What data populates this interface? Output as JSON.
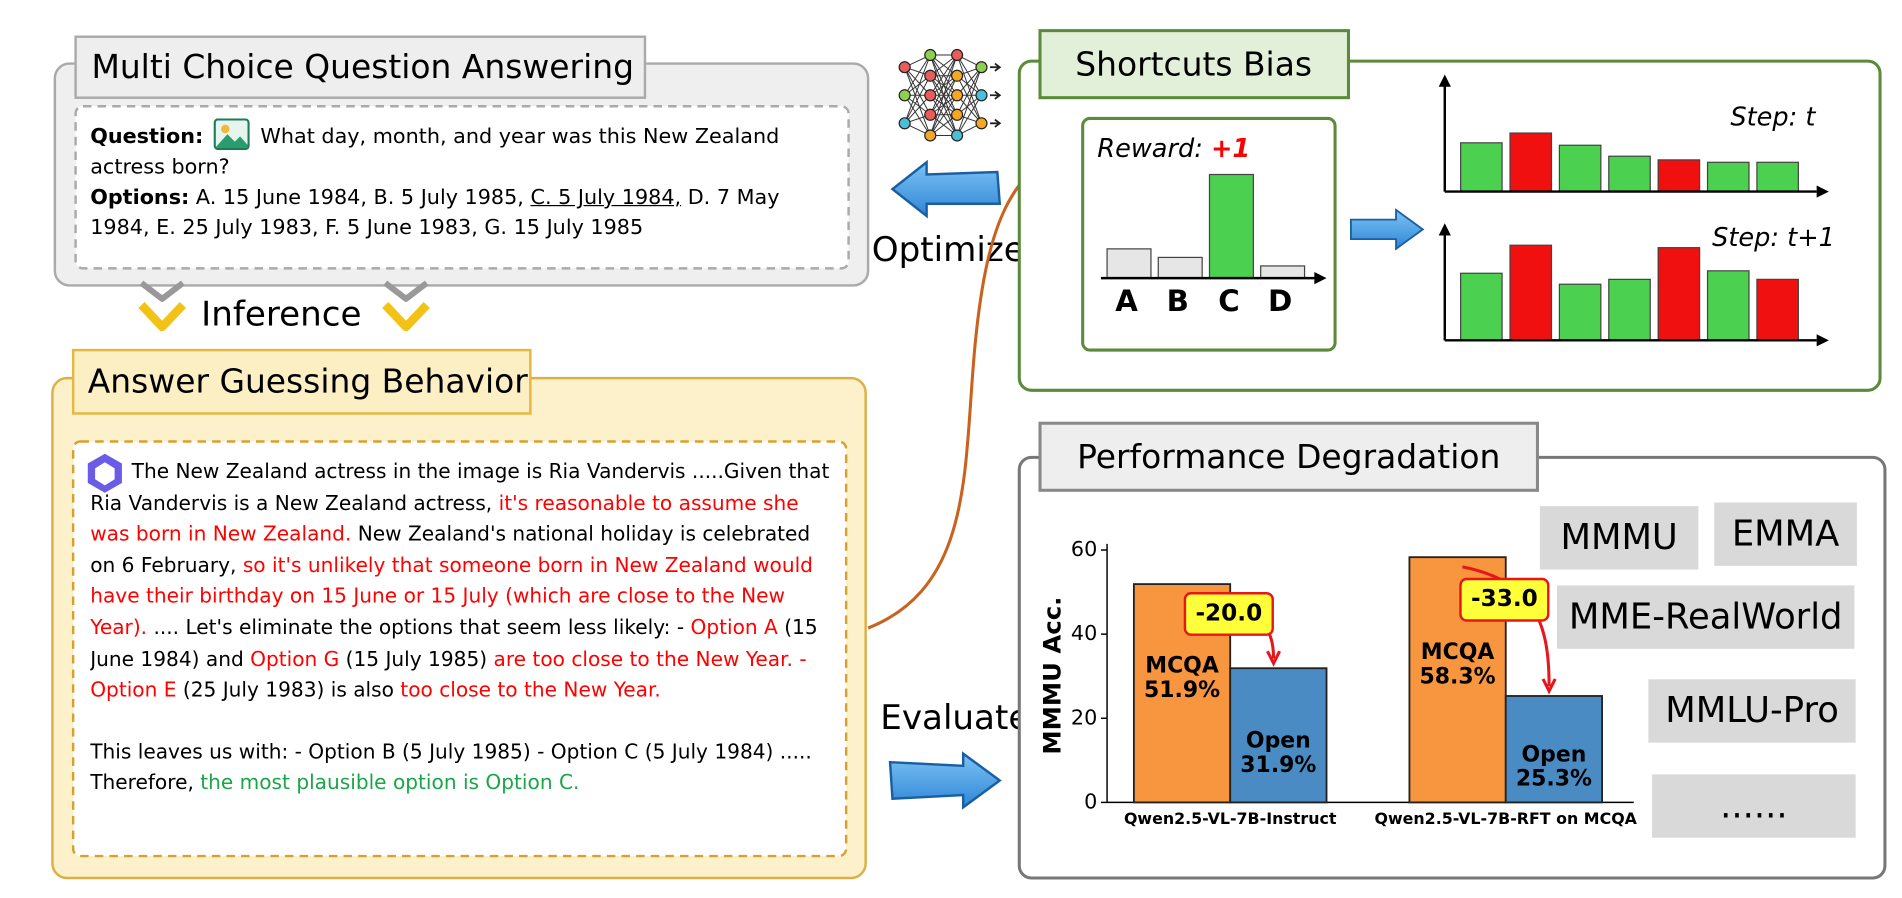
{
  "mcqa": {
    "title": "Multi Choice Question Answering",
    "question_label": "Question:",
    "question": "What day, month, and year was this New Zealand actress born?",
    "options_label": "Options:",
    "options_before": "A. 15 June 1984, B. 5 July 1985, ",
    "options_answer": "C. 5 July 1984,",
    "options_after": " D. 7 May 1984, E. 25 July 1983, F. 5 June 1983, G. 15 July 1985"
  },
  "inference": "Inference",
  "guessing": {
    "title": "Answer Guessing Behavior",
    "paragraphs": [
      [
        {
          "text": "The New Zealand actress in the image is Ria Vandervis .....Given that Ria Vandervis is a New Zealand actress, ",
          "color": "#000000"
        },
        {
          "text": "it's reasonable to assume she was born in New Zealand.",
          "color": "#ff0000"
        },
        {
          "text": " New Zealand's national holiday is celebrated on 6 February, ",
          "color": "#000000"
        },
        {
          "text": "so it's unlikely that someone born in New Zealand would have their birthday on 15 June or 15 July (which are close to the New Year).",
          "color": "#ff0000"
        },
        {
          "text": " .... Let's eliminate the options that seem less likely: - ",
          "color": "#000000"
        },
        {
          "text": "Option A",
          "color": "#ff0000"
        },
        {
          "text": " (15 June 1984) and ",
          "color": "#000000"
        },
        {
          "text": "Option G",
          "color": "#ff0000"
        },
        {
          "text": " (15 July 1985) ",
          "color": "#000000"
        },
        {
          "text": "are too close to the New Year. - Option E",
          "color": "#ff0000"
        },
        {
          "text": " (25 July 1983) is also ",
          "color": "#000000"
        },
        {
          "text": "too close to the New Year.",
          "color": "#ff0000"
        }
      ],
      [
        {
          "text": "This leaves us with: - Option B (5 July 1985) - Option C (5 July 1984) ..... Therefore, ",
          "color": "#000000"
        },
        {
          "text": "the most plausible option is Option C.",
          "color": "#1aa648"
        }
      ]
    ]
  },
  "optimize": "Optimize",
  "evaluate": "Evaluate",
  "shortcuts": {
    "title": "Shortcuts Bias",
    "reward_label": "Reward: ",
    "reward_value": "+1",
    "options": [
      "A",
      "B",
      "C",
      "D"
    ],
    "step_1": "Step: t",
    "step_2": "Step: t+1"
  },
  "degradation": {
    "title": "Performance Degradation",
    "chart": {
      "type": "bar",
      "y_label": "MMMU Acc.",
      "categories": [
        "Qwen2.5-VL-7B-Instruct",
        "Qwen2.5-VL-7B-RFT on MCQA"
      ],
      "series": [
        {
          "name": "MCQA",
          "color": "#f7963f",
          "values": [
            51.9,
            58.3
          ],
          "value_labels": [
            "51.9%",
            "58.3%"
          ]
        },
        {
          "name": "Open",
          "color": "#4a8bc4",
          "values": [
            31.9,
            25.3
          ],
          "value_labels": [
            "31.9%",
            "25.3%"
          ]
        }
      ],
      "deltas": [
        -20.0,
        -33.0
      ],
      "delta_labels": [
        "-20.0",
        "-33.0"
      ],
      "ylim": [
        0,
        60
      ],
      "yticks": [
        0,
        20,
        40,
        60
      ]
    },
    "benchmarks": [
      "MMMU",
      "EMMA",
      "MME-RealWorld",
      "MMLU-Pro",
      "......"
    ]
  }
}
